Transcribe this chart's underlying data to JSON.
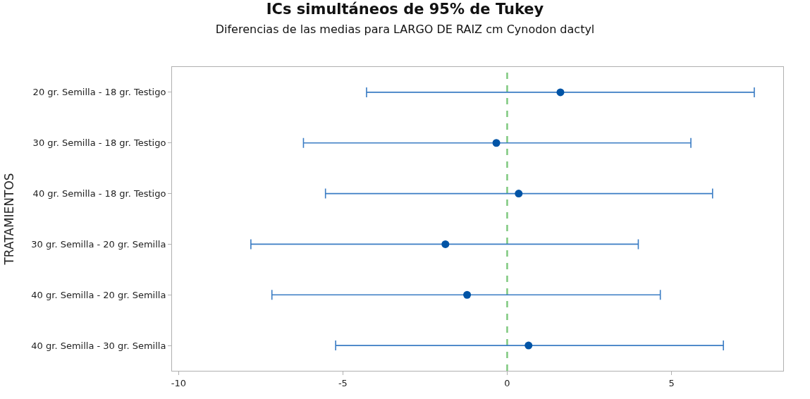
{
  "chart_data": {
    "type": "scatter",
    "orientation": "horizontal",
    "title": "ICs simultáneos de 95% de Tukey",
    "subtitle": "Diferencias de las medias para LARGO DE RAIZ cm Cynodon dactyl",
    "ylabel": "TRATAMIENTOS",
    "categories": [
      "20 gr. Semilla - 18 gr. Testigo",
      "30 gr. Semilla - 18 gr. Testigo",
      "40 gr. Semilla - 18 gr. Testigo",
      "30 gr. Semilla - 20 gr. Semilla",
      "40 gr. Semilla - 20 gr. Semilla",
      "40 gr. Semilla - 30 gr. Semilla"
    ],
    "values": [
      1.62,
      -0.33,
      0.35,
      -1.88,
      -1.22,
      0.65
    ],
    "errors": [
      [
        -4.28,
        7.52
      ],
      [
        -6.2,
        5.59
      ],
      [
        -5.53,
        6.25
      ],
      [
        -7.8,
        3.99
      ],
      [
        -7.16,
        4.66
      ],
      [
        -5.22,
        6.58
      ]
    ],
    "color": "#0054a6",
    "marker": "circle",
    "xlim": [
      -10.2,
      8.4
    ],
    "xticks": [
      -10,
      -5,
      0,
      5
    ],
    "ref_lines": [
      {
        "axis": "x",
        "value": 0,
        "color": "#7fc97f",
        "line_style": "dashed"
      }
    ],
    "grid": false
  }
}
